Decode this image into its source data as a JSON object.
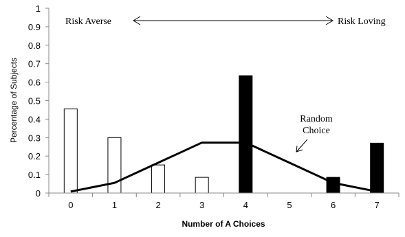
{
  "chart_data": {
    "type": "bar",
    "xlabel": "Number of A Choices",
    "ylabel": "Percentage of Subjects",
    "ylim": [
      0,
      1
    ],
    "yticks": [
      "0",
      "0.1",
      "0.2",
      "0.3",
      "0.4",
      "0.5",
      "0.6",
      "0.7",
      "0.8",
      "0.9",
      "1"
    ],
    "categories": [
      "0",
      "1",
      "2",
      "3",
      "4",
      "5",
      "6",
      "7"
    ],
    "series": [
      {
        "style": "white",
        "points": [
          {
            "x": "0",
            "y": 0.455
          },
          {
            "x": "1",
            "y": 0.3
          },
          {
            "x": "2",
            "y": 0.152
          },
          {
            "x": "3",
            "y": 0.085
          }
        ]
      },
      {
        "style": "black",
        "points": [
          {
            "x": "4",
            "y": 0.635
          },
          {
            "x": "6",
            "y": 0.085
          },
          {
            "x": "7",
            "y": 0.27
          }
        ]
      },
      {
        "name": "Random Choice",
        "type": "line",
        "values": [
          0.008,
          0.055,
          0.164,
          0.273,
          0.273,
          0.164,
          0.055,
          0.008
        ]
      }
    ],
    "annotations": {
      "left": "Risk Averse",
      "right": "Risk Loving",
      "line_label": [
        "Random",
        "Choice"
      ]
    },
    "grid": false,
    "colors": {
      "white_bar": "#ffffff",
      "black_bar": "#000000",
      "line": "#000000"
    }
  }
}
